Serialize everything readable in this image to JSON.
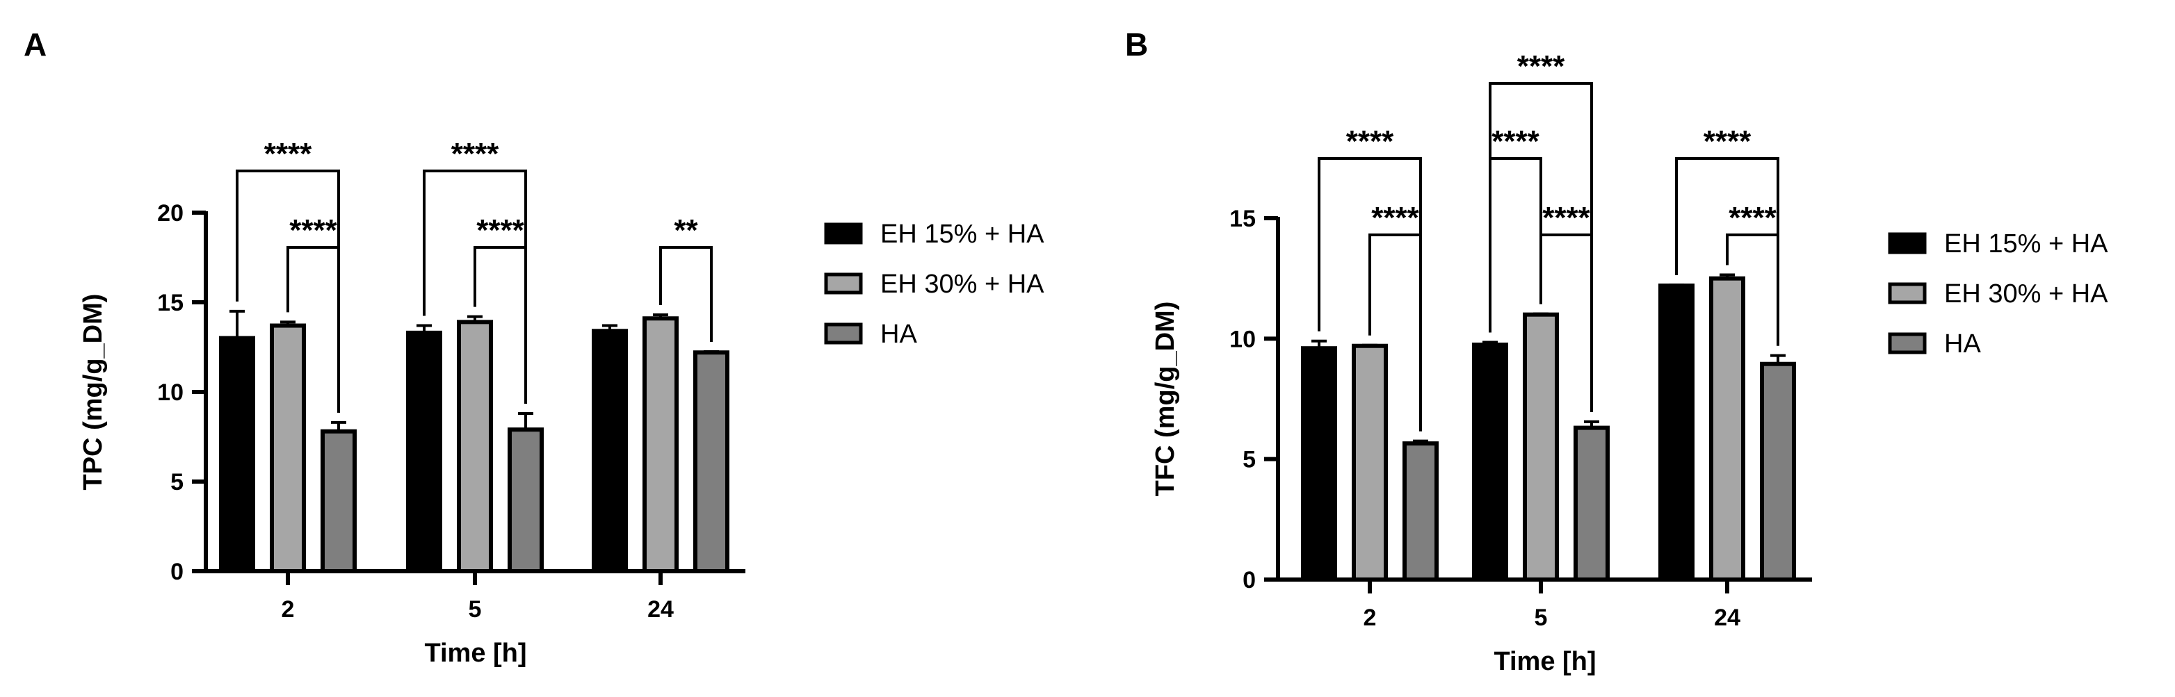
{
  "chart_data": [
    {
      "panel_label": "A",
      "type": "bar",
      "categories": [
        "2",
        "5",
        "24"
      ],
      "xlabel": "Time [h]",
      "ylabel": "TPC (mg/g_DM)",
      "ylim": [
        0,
        20
      ],
      "yticks": [
        0,
        5,
        10,
        15,
        20
      ],
      "legend_position": "right",
      "series": [
        {
          "name": "EH 15% + HA",
          "color": "#000000",
          "values": [
            13.0,
            13.3,
            13.4
          ],
          "errors": [
            1.5,
            0.4,
            0.3
          ]
        },
        {
          "name": "EH 30% + HA",
          "color": "#a6a6a6",
          "values": [
            13.7,
            13.9,
            14.1
          ],
          "errors": [
            0.2,
            0.3,
            0.2
          ]
        },
        {
          "name": "HA",
          "color": "#7f7f7f",
          "values": [
            7.8,
            7.9,
            12.2
          ],
          "errors": [
            0.5,
            0.9,
            0.05
          ]
        }
      ],
      "significance": [
        {
          "group": 0,
          "from_series": 0,
          "to_series": 2,
          "label": "****"
        },
        {
          "group": 0,
          "from_series": 1,
          "to_series": 2,
          "label": "****"
        },
        {
          "group": 1,
          "from_series": 0,
          "to_series": 2,
          "label": "****"
        },
        {
          "group": 1,
          "from_series": 1,
          "to_series": 2,
          "label": "****"
        },
        {
          "group": 2,
          "from_series": 1,
          "to_series": 2,
          "label": "**"
        }
      ]
    },
    {
      "panel_label": "B",
      "type": "bar",
      "categories": [
        "2",
        "5",
        "24"
      ],
      "xlabel": "Time [h]",
      "ylabel": "TFC (mg/g_DM)",
      "ylim": [
        0,
        15
      ],
      "yticks": [
        0,
        5,
        10,
        15
      ],
      "legend_position": "right",
      "series": [
        {
          "name": "EH 15% + HA",
          "color": "#000000",
          "values": [
            9.6,
            9.75,
            12.2
          ],
          "errors": [
            0.3,
            0.1,
            0.03
          ]
        },
        {
          "name": "EH 30% + HA",
          "color": "#a6a6a6",
          "values": [
            9.7,
            11.0,
            12.5
          ],
          "errors": [
            0.03,
            0.03,
            0.15
          ]
        },
        {
          "name": "HA",
          "color": "#7f7f7f",
          "values": [
            5.65,
            6.3,
            8.95
          ],
          "errors": [
            0.1,
            0.25,
            0.35
          ]
        }
      ],
      "significance": [
        {
          "group": 0,
          "from_series": 0,
          "to_series": 2,
          "label": "****"
        },
        {
          "group": 0,
          "from_series": 1,
          "to_series": 2,
          "label": "****"
        },
        {
          "group": 1,
          "from_series": 0,
          "to_series": 1,
          "label": "****"
        },
        {
          "group": 1,
          "from_series": 0,
          "to_series": 2,
          "label": "****"
        },
        {
          "group": 1,
          "from_series": 1,
          "to_series": 2,
          "label": "****"
        },
        {
          "group": 2,
          "from_series": 0,
          "to_series": 2,
          "label": "****"
        },
        {
          "group": 2,
          "from_series": 1,
          "to_series": 2,
          "label": "****"
        }
      ]
    }
  ]
}
